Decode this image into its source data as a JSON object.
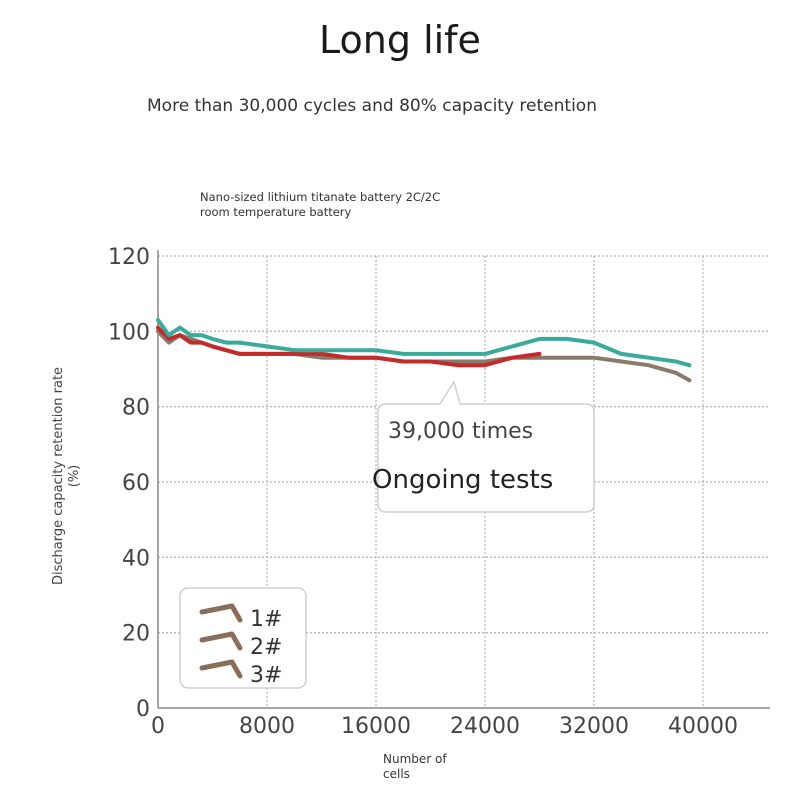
{
  "title": "Long life",
  "subtitle": "More than 30,000 cycles and 80% capacity retention",
  "chart_data": {
    "type": "line",
    "caption_lines": [
      "Nano-sized lithium titanate battery 2C/2C",
      "room temperature battery"
    ],
    "xlabel_lines": [
      "Number of",
      "cells"
    ],
    "ylabel_lines": [
      "Discharge capacity retention rate",
      "(%)"
    ],
    "xlim": [
      0,
      45000
    ],
    "ylim": [
      0,
      120
    ],
    "x_ticks": [
      0,
      8000,
      16000,
      24000,
      32000,
      40000
    ],
    "x_tick_labels": [
      "0",
      "8000",
      "16000",
      "24000",
      "32000",
      "40000"
    ],
    "y_ticks": [
      0,
      20,
      40,
      60,
      80,
      100,
      120
    ],
    "y_tick_labels": [
      "0",
      "20",
      "40",
      "60",
      "80",
      "100",
      "120"
    ],
    "grid": true,
    "legend_position": "bottom-left",
    "series": [
      {
        "name": "1#",
        "color": "#8a7a6a",
        "x": [
          0,
          800,
          1600,
          2400,
          3200,
          4000,
          5000,
          6000,
          8000,
          10000,
          12000,
          14000,
          16000,
          18000,
          20000,
          22000,
          24000,
          26000,
          28000,
          30000,
          32000,
          34000,
          36000,
          38000,
          39000
        ],
        "y": [
          100,
          97,
          99,
          98,
          97,
          96,
          95,
          94,
          94,
          94,
          93,
          93,
          93,
          92,
          92,
          92,
          92,
          93,
          93,
          93,
          93,
          92,
          91,
          89,
          87
        ]
      },
      {
        "name": "2#",
        "color": "#c42a2a",
        "x": [
          0,
          800,
          1600,
          2400,
          3200,
          4000,
          5000,
          6000,
          8000,
          10000,
          12000,
          14000,
          16000,
          18000,
          20000,
          22000,
          24000,
          26000,
          28000
        ],
        "y": [
          101,
          98,
          99,
          97,
          97,
          96,
          95,
          94,
          94,
          94,
          94,
          93,
          93,
          92,
          92,
          91,
          91,
          93,
          94
        ]
      },
      {
        "name": "3#",
        "color": "#3aaa9a",
        "x": [
          0,
          800,
          1600,
          2400,
          3200,
          4000,
          5000,
          6000,
          8000,
          10000,
          12000,
          14000,
          16000,
          18000,
          20000,
          22000,
          24000,
          26000,
          28000,
          30000,
          32000,
          34000,
          36000,
          38000,
          39000
        ],
        "y": [
          103,
          99,
          101,
          99,
          99,
          98,
          97,
          97,
          96,
          95,
          95,
          95,
          95,
          94,
          94,
          94,
          94,
          96,
          98,
          98,
          97,
          94,
          93,
          92,
          91
        ]
      }
    ],
    "annotation": {
      "line1": "39,000 times",
      "line2": "Ongoing tests",
      "x": 20000,
      "y": 86
    }
  }
}
